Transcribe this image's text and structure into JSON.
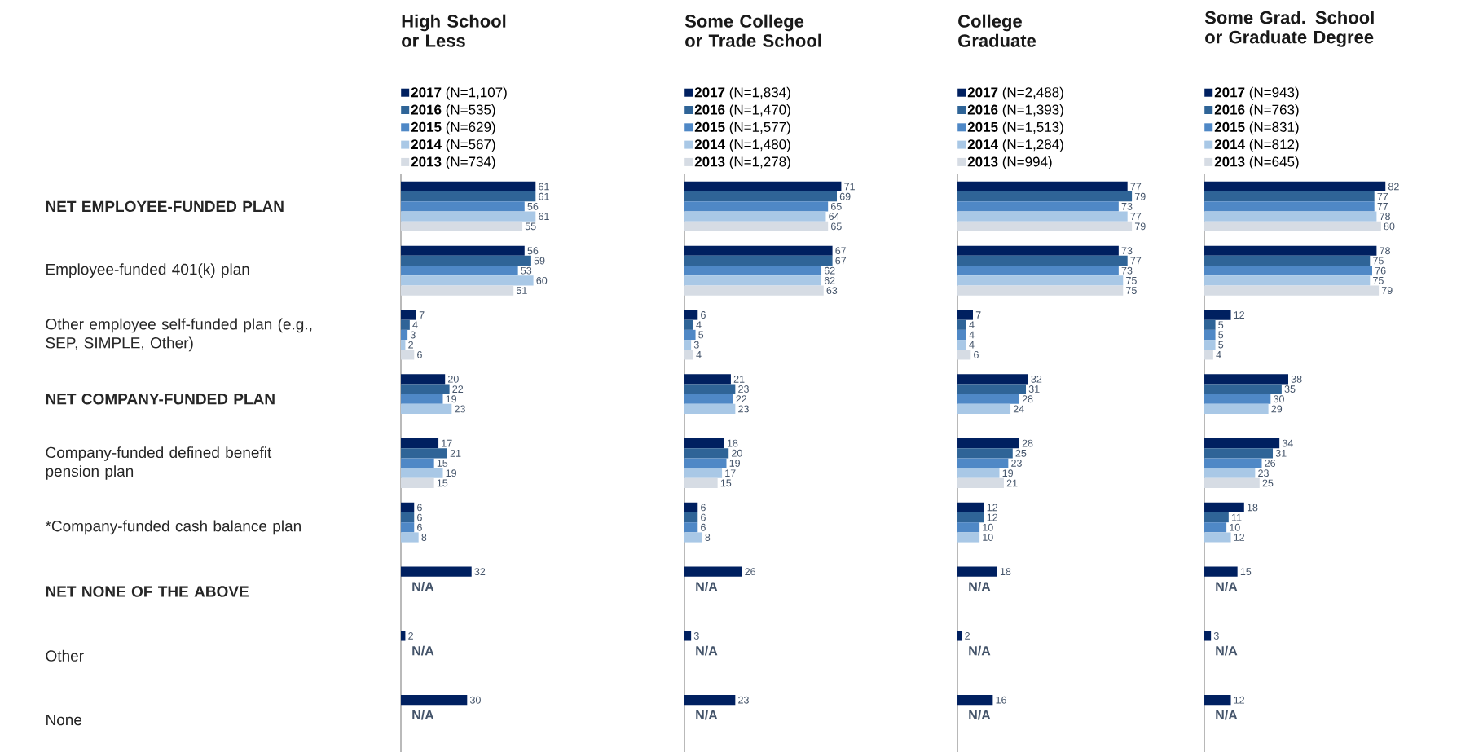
{
  "chart_data": [
    {
      "type": "bar",
      "orientation": "horizontal",
      "title": "High School or Less",
      "legend": "top left",
      "tick_labels": "y",
      "categories": [
        "**NET EMPLOYEE-FUNDED PLAN**",
        "Employee-funded 401(k) plan",
        "Other employee self-funded plan (e.g., SEP, SIMPLE, Other)",
        "**NET COMPANY-FUNDED PLAN**",
        "Company-funded defined benefit pension plan",
        "*Company-funded cash balance plan",
        "**NET NONE OF THE ABOVE**",
        "Other",
        "None"
      ],
      "series": [
        {
          "name": "**2017** (N=1,107)",
          "color": "#002060",
          "values": [
            61,
            56,
            7,
            20,
            17,
            6,
            32,
            2,
            30
          ],
          "value_labels": [
            "61",
            "56",
            "7",
            "20",
            "17",
            "6",
            "32",
            "2",
            "30"
          ]
        },
        {
          "name": "**2016** (N=535)",
          "color": "#2f6497",
          "values": [
            61,
            59,
            4,
            22,
            21,
            6,
            null,
            null,
            null
          ],
          "value_labels": [
            "61",
            "59",
            "4",
            "22",
            "21",
            "6",
            "N/A",
            "N/A",
            "N/A"
          ]
        },
        {
          "name": "**2015** (N=629)",
          "color": "#4f88c6",
          "values": [
            56,
            53,
            3,
            19,
            15,
            6,
            null,
            null,
            null
          ],
          "value_labels": [
            "56",
            "53",
            "3",
            "19",
            "15",
            "6",
            null,
            null,
            null
          ]
        },
        {
          "name": "**2014** (N=567)",
          "color": "#a9c8e6",
          "values": [
            61,
            60,
            2,
            23,
            19,
            8,
            null,
            null,
            null
          ],
          "value_labels": [
            "61",
            "60",
            "2",
            "23",
            "19",
            "8",
            null,
            null,
            null
          ]
        },
        {
          "name": "**2013** (N=734)",
          "color": "#d6dce4",
          "values": [
            55,
            51,
            6,
            null,
            15,
            null,
            null,
            null,
            null
          ],
          "value_labels": [
            "55",
            "51",
            "6",
            null,
            "15",
            null,
            null,
            null,
            null
          ]
        }
      ]
    },
    {
      "type": "bar",
      "orientation": "horizontal",
      "title": "Some College or Trade School",
      "legend": "top left",
      "tick_labels": false,
      "categories": [
        null,
        null,
        null,
        null,
        null,
        null,
        null,
        null,
        null
      ],
      "series": [
        {
          "name": "**2017** (N=1,834)",
          "color": "#002060",
          "values": [
            71,
            67,
            6,
            21,
            18,
            6,
            26,
            3,
            23
          ],
          "value_labels": [
            "71",
            "67",
            "6",
            "21",
            "18",
            "6",
            "26",
            "3",
            "23"
          ]
        },
        {
          "name": "**2016** (N=1,470)",
          "color": "#2f6497",
          "values": [
            69,
            67,
            4,
            23,
            20,
            6,
            null,
            null,
            null
          ],
          "value_labels": [
            "69",
            "67",
            "4",
            "23",
            "20",
            "6",
            "N/A",
            "N/A",
            "N/A"
          ]
        },
        {
          "name": "**2015** (N=1,577)",
          "color": "#4f88c6",
          "values": [
            65,
            62,
            5,
            22,
            19,
            6,
            null,
            null,
            null
          ],
          "value_labels": [
            "65",
            "62",
            "5",
            "22",
            "19",
            "6",
            null,
            null,
            null
          ]
        },
        {
          "name": "**2014** (N=1,480)",
          "color": "#a9c8e6",
          "values": [
            64,
            62,
            3,
            23,
            17,
            8,
            null,
            null,
            null
          ],
          "value_labels": [
            "64",
            "62",
            "3",
            "23",
            "17",
            "8",
            null,
            null,
            null
          ]
        },
        {
          "name": "**2013** (N=1,278)",
          "color": "#d6dce4",
          "values": [
            65,
            63,
            4,
            null,
            15,
            null,
            null,
            null,
            null
          ],
          "value_labels": [
            "65",
            "63",
            "4",
            null,
            "15",
            null,
            null,
            null,
            null
          ]
        }
      ]
    },
    {
      "type": "bar",
      "orientation": "horizontal",
      "title": "College Graduate",
      "legend": "top left",
      "tick_labels": false,
      "categories": [
        null,
        null,
        null,
        null,
        null,
        null,
        null,
        null,
        null
      ],
      "series": [
        {
          "name": "**2017** (N=2,488)",
          "color": "#002060",
          "values": [
            77,
            73,
            7,
            32,
            28,
            12,
            18,
            2,
            16
          ],
          "value_labels": [
            "77",
            "73",
            "7",
            "32",
            "28",
            "12",
            "18",
            "2",
            "16"
          ]
        },
        {
          "name": "**2016** (N=1,393)",
          "color": "#2f6497",
          "values": [
            79,
            77,
            4,
            31,
            25,
            12,
            null,
            null,
            null
          ],
          "value_labels": [
            "79",
            "77",
            "4",
            "31",
            "25",
            "12",
            "N/A",
            "N/A",
            "N/A"
          ]
        },
        {
          "name": "**2015** (N=1,513)",
          "color": "#4f88c6",
          "values": [
            73,
            73,
            4,
            28,
            23,
            10,
            null,
            null,
            null
          ],
          "value_labels": [
            "73",
            "73",
            "4",
            "28",
            "23",
            "10",
            null,
            null,
            null
          ]
        },
        {
          "name": "**2014** (N=1,284)",
          "color": "#a9c8e6",
          "values": [
            77,
            75,
            4,
            24,
            19,
            10,
            null,
            null,
            null
          ],
          "value_labels": [
            "77",
            "75",
            "4",
            "24",
            "19",
            "10",
            null,
            null,
            null
          ]
        },
        {
          "name": "**2013** (N=994)",
          "color": "#d6dce4",
          "values": [
            79,
            75,
            6,
            null,
            21,
            null,
            null,
            null,
            null
          ],
          "value_labels": [
            "79",
            "75",
            "6",
            null,
            "21",
            null,
            null,
            null,
            null
          ]
        }
      ]
    },
    {
      "type": "bar",
      "orientation": "horizontal",
      "title": "Some Grad. School or Graduate Degree",
      "legend": "top left",
      "tick_labels": false,
      "categories": [
        null,
        null,
        null,
        null,
        null,
        null,
        null,
        null,
        null
      ],
      "series": [
        {
          "name": "**2017** (N=943)",
          "color": "#002060",
          "values": [
            82,
            78,
            12,
            38,
            34,
            18,
            15,
            3,
            12
          ],
          "value_labels": [
            "82",
            "78",
            "12",
            "38",
            "34",
            "18",
            "15",
            "3",
            "12"
          ]
        },
        {
          "name": "**2016** (N=763)",
          "color": "#2f6497",
          "values": [
            77,
            75,
            5,
            35,
            31,
            11,
            null,
            null,
            null
          ],
          "value_labels": [
            "77",
            "75",
            "5",
            "35",
            "31",
            "11",
            "N/A",
            "N/A",
            "N/A"
          ]
        },
        {
          "name": "**2015** (N=831)",
          "color": "#4f88c6",
          "values": [
            77,
            76,
            5,
            30,
            26,
            10,
            null,
            null,
            null
          ],
          "value_labels": [
            "77",
            "76",
            "5",
            "30",
            "26",
            "10",
            null,
            null,
            null
          ]
        },
        {
          "name": "**2014** (N=812)",
          "color": "#a9c8e6",
          "values": [
            78,
            75,
            5,
            29,
            23,
            12,
            null,
            null,
            null
          ],
          "value_labels": [
            "78",
            "75",
            "5",
            "29",
            "23",
            "12",
            null,
            null,
            null
          ]
        },
        {
          "name": "**2013** (N=645)",
          "color": "#d6dce4",
          "values": [
            80,
            79,
            4,
            null,
            25,
            null,
            null,
            null,
            null
          ],
          "value_labels": [
            "80",
            "79",
            "4",
            null,
            "25",
            null,
            null,
            null,
            null
          ]
        }
      ]
    }
  ]
}
